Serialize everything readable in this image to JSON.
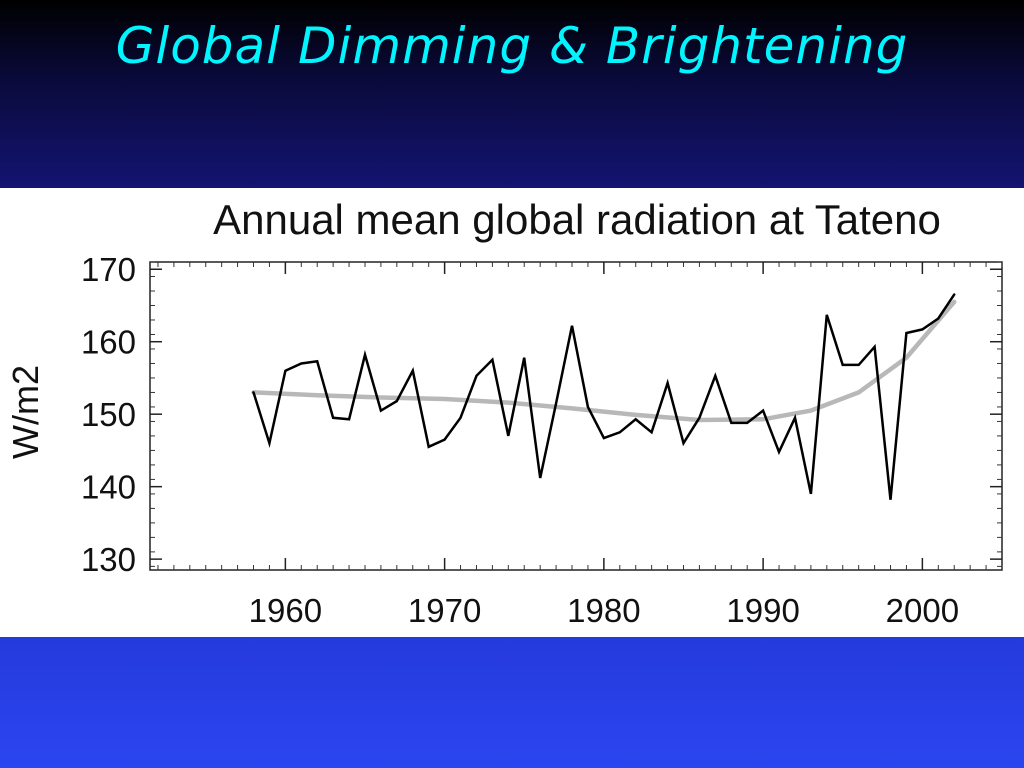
{
  "slide": {
    "title": "Global Dimming & Brightening"
  },
  "chart_data": {
    "type": "line",
    "title": "Annual mean global radiation at Tateno",
    "xlabel": "",
    "ylabel": "W/m2",
    "xlim": [
      1951.5,
      2005
    ],
    "ylim": [
      128.5,
      171
    ],
    "xticks": [
      1960,
      1970,
      1980,
      1990,
      2000
    ],
    "yticks": [
      130,
      140,
      150,
      160,
      170
    ],
    "grid": false,
    "series": [
      {
        "color": "#000000",
        "x": [
          1958,
          1959,
          1960,
          1961,
          1962,
          1963,
          1964,
          1965,
          1966,
          1967,
          1968,
          1969,
          1970,
          1971,
          1972,
          1973,
          1974,
          1975,
          1976,
          1977,
          1978,
          1979,
          1980,
          1981,
          1982,
          1983,
          1984,
          1985,
          1986,
          1987,
          1988,
          1989,
          1990,
          1991,
          1992,
          1993,
          1994,
          1995,
          1996,
          1997,
          1998,
          1999,
          2000,
          2001,
          2002
        ],
        "values": [
          153,
          146,
          156,
          157,
          157.3,
          149.5,
          149.3,
          158.2,
          150.5,
          151.8,
          156,
          145.5,
          146.5,
          149.5,
          155.3,
          157.5,
          147,
          157.8,
          141.2,
          151.5,
          162.2,
          151,
          146.7,
          147.5,
          149.3,
          147.5,
          154.3,
          146,
          149.5,
          155.3,
          148.8,
          148.8,
          150.5,
          144.8,
          149.5,
          139,
          163.7,
          156.8,
          156.8,
          159.3,
          138.2,
          161.2,
          161.7,
          163.2,
          166.5
        ]
      },
      {
        "color": "#b8b8b8",
        "x": [
          1958,
          1962,
          1966,
          1970,
          1974,
          1978,
          1982,
          1986,
          1990,
          1993,
          1996,
          1999,
          2002
        ],
        "values": [
          153,
          152.6,
          152.3,
          152.1,
          151.6,
          150.8,
          149.9,
          149.2,
          149.3,
          150.5,
          153,
          157.8,
          165.5
        ]
      }
    ]
  }
}
